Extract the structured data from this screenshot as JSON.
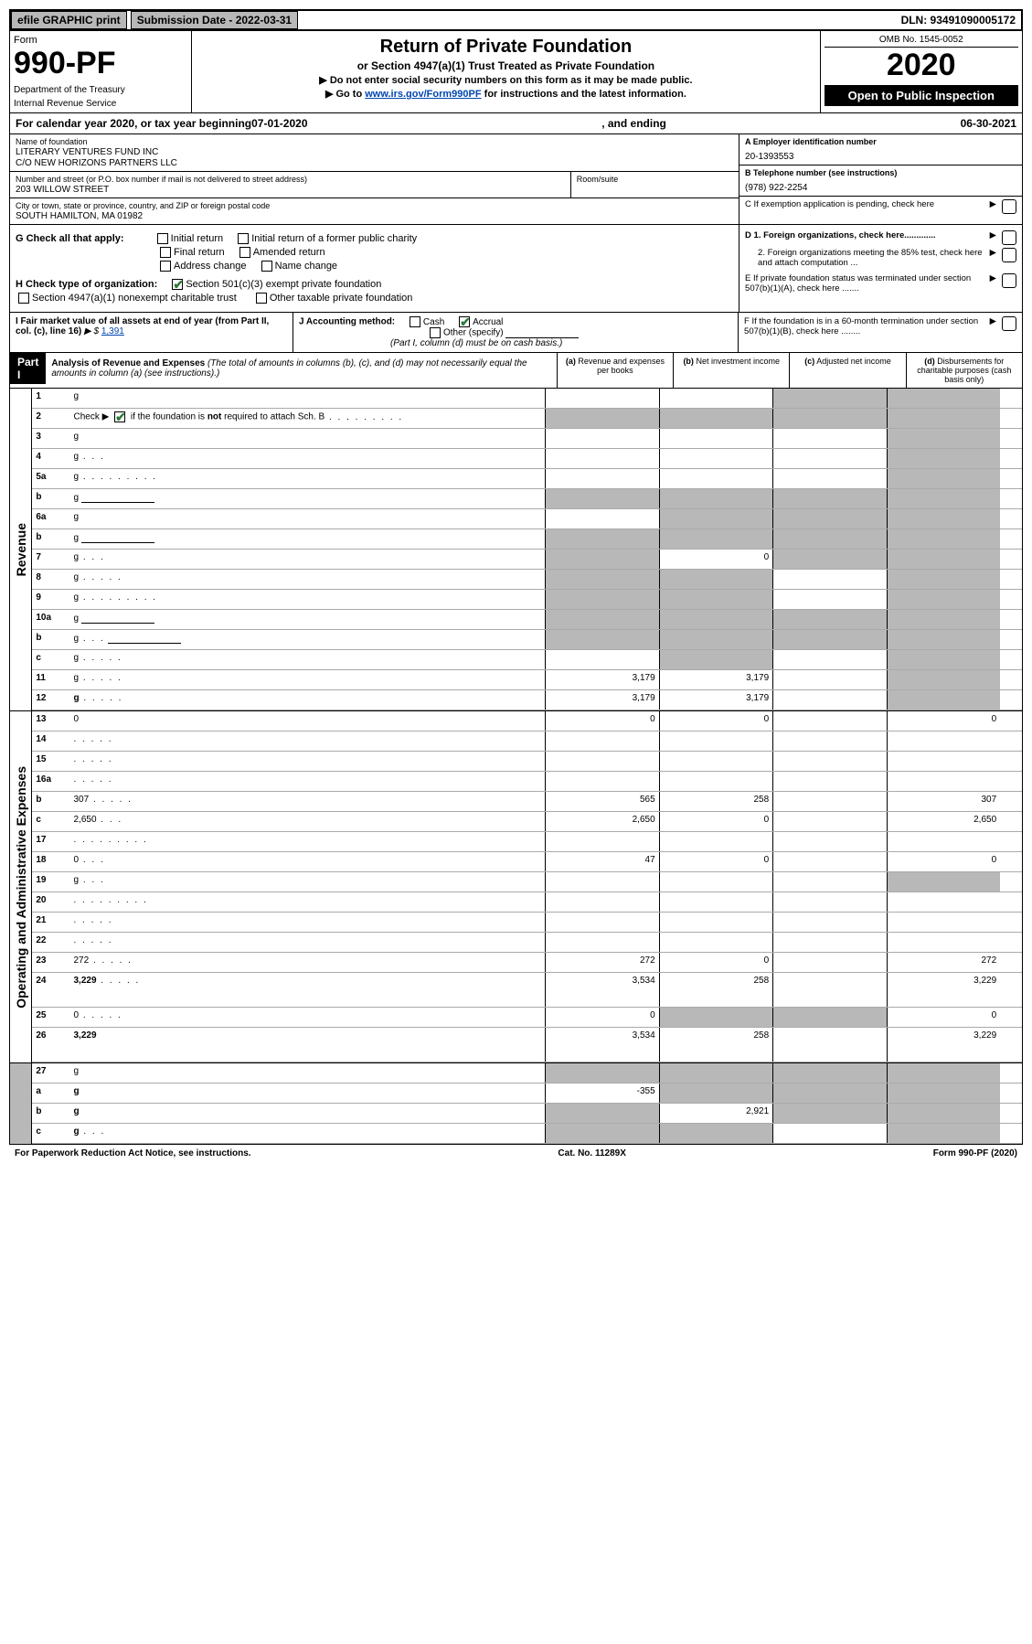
{
  "topbar": {
    "efile": "efile GRAPHIC print",
    "subdate_label": "Submission Date - 2022-03-31",
    "dln": "DLN: 93491090005172"
  },
  "header": {
    "form": "Form",
    "no": "990-PF",
    "dept": "Department of the Treasury",
    "irs": "Internal Revenue Service",
    "title": "Return of Private Foundation",
    "subtitle": "or Section 4947(a)(1) Trust Treated as Private Foundation",
    "instr1": "▶ Do not enter social security numbers on this form as it may be made public.",
    "instr2_pre": "▶ Go to ",
    "instr2_link": "www.irs.gov/Form990PF",
    "instr2_post": " for instructions and the latest information.",
    "omb": "OMB No. 1545-0052",
    "year": "2020",
    "open": "Open to Public Inspection"
  },
  "calyear": {
    "pre": "For calendar year 2020, or tax year beginning ",
    "begin": "07-01-2020",
    "mid": ", and ending ",
    "end": "06-30-2021"
  },
  "id": {
    "name_label": "Name of foundation",
    "name1": "LITERARY VENTURES FUND INC",
    "name2": "C/O NEW HORIZONS PARTNERS LLC",
    "addr_label": "Number and street (or P.O. box number if mail is not delivered to street address)",
    "addr": "203 WILLOW STREET",
    "room_label": "Room/suite",
    "city_label": "City or town, state or province, country, and ZIP or foreign postal code",
    "city": "SOUTH HAMILTON, MA  01982",
    "ein_label": "A Employer identification number",
    "ein": "20-1393553",
    "tel_label": "B Telephone number (see instructions)",
    "tel": "(978) 922-2254",
    "c_label": "C  If exemption application is pending, check here"
  },
  "checks": {
    "g_label": "G Check all that apply:",
    "g_items": [
      "Initial return",
      "Initial return of a former public charity",
      "Final return",
      "Amended return",
      "Address change",
      "Name change"
    ],
    "h_label": "H Check type of organization:",
    "h1": "Section 501(c)(3) exempt private foundation",
    "h2": "Section 4947(a)(1) nonexempt charitable trust",
    "h3": "Other taxable private foundation",
    "d1": "D 1. Foreign organizations, check here.............",
    "d2": "2. Foreign organizations meeting the 85% test, check here and attach computation ...",
    "e": "E  If private foundation status was terminated under section 507(b)(1)(A), check here .......",
    "i_label": "I Fair market value of all assets at end of year (from Part II, col. (c), line 16)",
    "i_val": "1,391",
    "j_label": "J Accounting method:",
    "j_cash": "Cash",
    "j_accrual": "Accrual",
    "j_other": "Other (specify)",
    "j_note": "(Part I, column (d) must be on cash basis.)",
    "f": "F  If the foundation is in a 60-month termination under section 507(b)(1)(B), check here ........"
  },
  "part1": {
    "label": "Part I",
    "title": "Analysis of Revenue and Expenses",
    "title_note": " (The total of amounts in columns (b), (c), and (d) may not necessarily equal the amounts in column (a) (see instructions).)",
    "cols": {
      "a": "(a) Revenue and expenses per books",
      "b": "(b) Net investment income",
      "c": "(c) Adjusted net income",
      "d": "(d) Disbursements for charitable purposes (cash basis only)"
    }
  },
  "side_labels": {
    "rev": "Revenue",
    "exp": "Operating and Administrative Expenses"
  },
  "rows": [
    {
      "n": "1",
      "d": "g",
      "a": "",
      "b": "",
      "c": "g"
    },
    {
      "n": "2",
      "d": "g",
      "dots": "long",
      "a": "g",
      "b": "g",
      "c": "g",
      "checkmark": true
    },
    {
      "n": "3",
      "d": "g",
      "a": "",
      "b": "",
      "c": ""
    },
    {
      "n": "4",
      "d": "g",
      "dots": "xs",
      "a": "",
      "b": "",
      "c": ""
    },
    {
      "n": "5a",
      "d": "g",
      "dots": "long",
      "a": "",
      "b": "",
      "c": ""
    },
    {
      "n": "b",
      "d": "g",
      "blank": true,
      "a": "g",
      "b": "g",
      "c": "g"
    },
    {
      "n": "6a",
      "d": "g",
      "a": "",
      "b": "g",
      "c": "g"
    },
    {
      "n": "b",
      "d": "g",
      "blank": true,
      "a": "g",
      "b": "g",
      "c": "g"
    },
    {
      "n": "7",
      "d": "g",
      "dots": "xs",
      "a": "g",
      "b": "0",
      "c": "g"
    },
    {
      "n": "8",
      "d": "g",
      "dots": "sm",
      "a": "g",
      "b": "g",
      "c": ""
    },
    {
      "n": "9",
      "d": "g",
      "dots": "long",
      "a": "g",
      "b": "g",
      "c": ""
    },
    {
      "n": "10a",
      "d": "g",
      "blank": true,
      "a": "g",
      "b": "g",
      "c": "g"
    },
    {
      "n": "b",
      "d": "g",
      "dots": "xs",
      "blank": true,
      "a": "g",
      "b": "g",
      "c": "g"
    },
    {
      "n": "c",
      "d": "g",
      "dots": "sm",
      "a": "",
      "b": "g",
      "c": ""
    },
    {
      "n": "11",
      "d": "g",
      "dots": "sm",
      "a": "3,179",
      "b": "3,179",
      "c": ""
    },
    {
      "n": "12",
      "d": "g",
      "dots": "sm",
      "bold": true,
      "a": "3,179",
      "b": "3,179",
      "c": ""
    }
  ],
  "rows2": [
    {
      "n": "13",
      "d": "0",
      "a": "0",
      "b": "0",
      "c": ""
    },
    {
      "n": "14",
      "d": "",
      "dots": "sm",
      "a": "",
      "b": "",
      "c": ""
    },
    {
      "n": "15",
      "d": "",
      "dots": "sm",
      "a": "",
      "b": "",
      "c": ""
    },
    {
      "n": "16a",
      "d": "",
      "dots": "sm",
      "a": "",
      "b": "",
      "c": ""
    },
    {
      "n": "b",
      "d": "307",
      "dots": "sm",
      "a": "565",
      "b": "258",
      "c": ""
    },
    {
      "n": "c",
      "d": "2,650",
      "dots": "xs",
      "a": "2,650",
      "b": "0",
      "c": ""
    },
    {
      "n": "17",
      "d": "",
      "dots": "long",
      "a": "",
      "b": "",
      "c": ""
    },
    {
      "n": "18",
      "d": "0",
      "dots": "xs",
      "a": "47",
      "b": "0",
      "c": ""
    },
    {
      "n": "19",
      "d": "g",
      "dots": "xs",
      "a": "",
      "b": "",
      "c": ""
    },
    {
      "n": "20",
      "d": "",
      "dots": "long",
      "a": "",
      "b": "",
      "c": ""
    },
    {
      "n": "21",
      "d": "",
      "dots": "sm",
      "a": "",
      "b": "",
      "c": ""
    },
    {
      "n": "22",
      "d": "",
      "dots": "sm",
      "a": "",
      "b": "",
      "c": ""
    },
    {
      "n": "23",
      "d": "272",
      "dots": "sm",
      "a": "272",
      "b": "0",
      "c": ""
    },
    {
      "n": "24",
      "d": "3,229",
      "dots": "sm",
      "bold": true,
      "a": "3,534",
      "b": "258",
      "c": "",
      "tall": true
    },
    {
      "n": "25",
      "d": "0",
      "dots": "sm",
      "a": "0",
      "b": "g",
      "c": "g"
    },
    {
      "n": "26",
      "d": "3,229",
      "bold": true,
      "a": "3,534",
      "b": "258",
      "c": "",
      "tall": true
    }
  ],
  "rows3": [
    {
      "n": "27",
      "d": "g",
      "a": "g",
      "b": "g",
      "c": "g"
    },
    {
      "n": "a",
      "d": "g",
      "bold": true,
      "a": "-355",
      "b": "g",
      "c": "g"
    },
    {
      "n": "b",
      "d": "g",
      "bold": true,
      "a": "g",
      "b": "2,921",
      "c": "g"
    },
    {
      "n": "c",
      "d": "g",
      "dots": "xs",
      "bold": true,
      "a": "g",
      "b": "g",
      "c": ""
    }
  ],
  "footer": {
    "left": "For Paperwork Reduction Act Notice, see instructions.",
    "mid": "Cat. No. 11289X",
    "right": "Form 990-PF (2020)"
  }
}
